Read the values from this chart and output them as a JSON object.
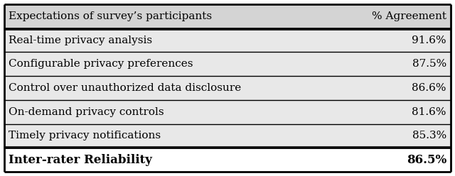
{
  "header_col1": "Expectations of survey’s participants",
  "header_col2": "% Agreement",
  "rows": [
    {
      "label": "Real-time privacy analysis",
      "value": "91.6%"
    },
    {
      "label": "Configurable privacy preferences",
      "value": "87.5%"
    },
    {
      "label": "Control over unauthorized data disclosure",
      "value": "86.6%"
    },
    {
      "label": "On-demand privacy controls",
      "value": "81.6%"
    },
    {
      "label": "Timely privacy notifications",
      "value": "85.3%"
    }
  ],
  "footer_col1": "Inter-rater Reliability",
  "footer_col2": "86.5%",
  "header_bg": "#d4d4d4",
  "data_bg": "#e8e8e8",
  "footer_bg": "#ffffff",
  "border_color": "#000000",
  "text_color": "#000000",
  "font_size": 11.0,
  "header_font_size": 11.0,
  "footer_font_size": 12.0,
  "fig_width": 6.4,
  "fig_height": 2.48,
  "dpi": 100
}
